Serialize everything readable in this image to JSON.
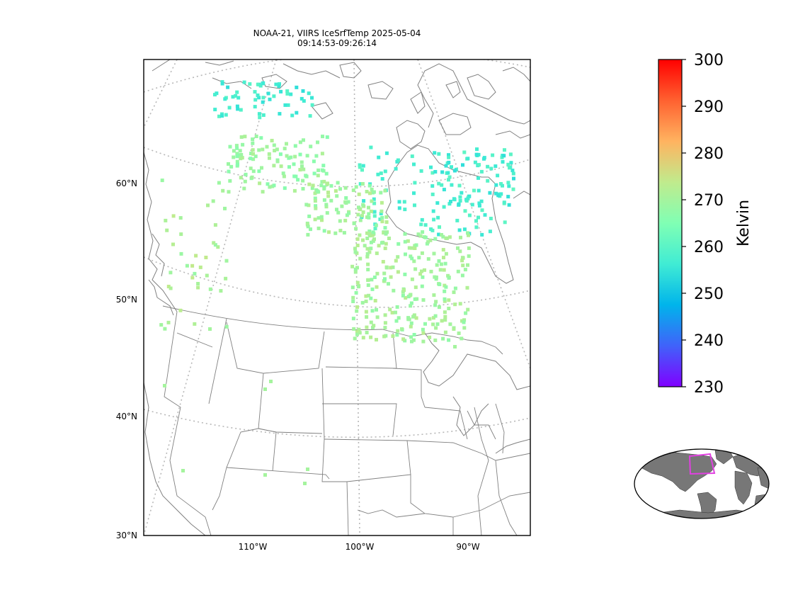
{
  "title": {
    "line1": "NOAA-21, VIIRS IceSrfTemp 2025-05-04",
    "line2": "09:14:53-09:26:14"
  },
  "lat_labels": [
    "60°N",
    "50°N",
    "40°N",
    "30°N"
  ],
  "lon_labels": [
    "110°W",
    "100°W",
    "90°W"
  ],
  "colorbar": {
    "label": "Kelvin",
    "ticks": [
      "300",
      "290",
      "280",
      "270",
      "260",
      "250",
      "240",
      "230"
    ],
    "min": 230,
    "max": 300,
    "colormap": "rainbow",
    "colors": [
      "#8000ff",
      "#4062fa",
      "#00b4eb",
      "#40ecd4",
      "#80ffb4",
      "#c0eb8d",
      "#ffb360",
      "#ff6130",
      "#ff0000"
    ]
  },
  "map": {
    "projection": "lambert-conformal",
    "lat_range": [
      30,
      70
    ],
    "lon_range": [
      -120,
      -85
    ],
    "gridlines": true,
    "features": [
      "coastlines",
      "us-state-borders",
      "canada-us-border"
    ]
  },
  "inset": {
    "type": "world-locator",
    "highlight_color": "#e040e0",
    "land_color": "#777777"
  },
  "clusters": [
    {
      "name": "arctic-islands",
      "temp_k": 257,
      "lat": 66.5,
      "lon": -113
    },
    {
      "name": "northern-nwt",
      "temp_k": 269,
      "lat": 62.5,
      "lon": -108
    },
    {
      "name": "hudson-bay-west",
      "temp_k": 258,
      "lat": 60,
      "lon": -91
    },
    {
      "name": "hudson-bay-north",
      "temp_k": 257,
      "lat": 62.5,
      "lon": -85
    },
    {
      "name": "central-canada",
      "temp_k": 270,
      "lat": 57.5,
      "lon": -101
    },
    {
      "name": "ontario",
      "temp_k": 270,
      "lat": 52,
      "lon": -94
    },
    {
      "name": "bc-interior",
      "temp_k": 271,
      "lat": 56,
      "lon": -118
    }
  ]
}
